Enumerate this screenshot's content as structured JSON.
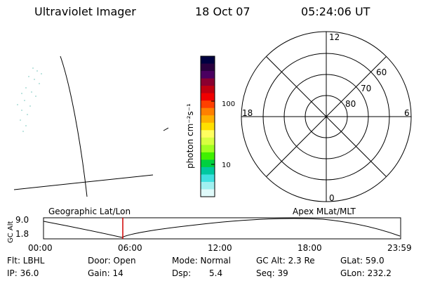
{
  "header": {
    "instrument": "Ultraviolet Imager",
    "date": "18 Oct 07",
    "time": "05:24:06 UT"
  },
  "colorbar": {
    "label": "photon cm⁻²s⁻¹",
    "tick_100": "100",
    "tick_10": "10",
    "colors": [
      "#000040",
      "#2a003f",
      "#4a0060",
      "#8a0030",
      "#c00010",
      "#f00000",
      "#ff4000",
      "#ff8000",
      "#ffb000",
      "#ffe000",
      "#ffff60",
      "#d8ff40",
      "#a0ff20",
      "#40f000",
      "#00d040",
      "#00c8a0",
      "#40e0e0",
      "#a0f0f0",
      "#e0fafa"
    ]
  },
  "polar": {
    "label_12": "12",
    "label_18": "18",
    "label_6": "6",
    "label_0": "0",
    "label_60": "60",
    "label_70": "70",
    "label_80": "80"
  },
  "timeline": {
    "left_title": "Geographic Lat/Lon",
    "right_title": "Apex MLat/MLT",
    "axis_label": "GC Alt",
    "y_top": "9.0",
    "y_bottom": "1.8",
    "x_ticks": [
      "00:00",
      "06:00",
      "12:00",
      "18:00",
      "23:59"
    ]
  },
  "info": {
    "flt": "Flt: LBHL",
    "door": "Door: Open",
    "mode": "Mode: Normal",
    "gcalt": "GC Alt: 2.3 Re",
    "glat": "GLat: 59.0",
    "ip": "IP: 36.0",
    "gain": "Gain: 14",
    "dsp": "Dsp:",
    "dsp_val": "5.4",
    "seq": "Seq: 39",
    "glon": "GLon: 232.2"
  }
}
